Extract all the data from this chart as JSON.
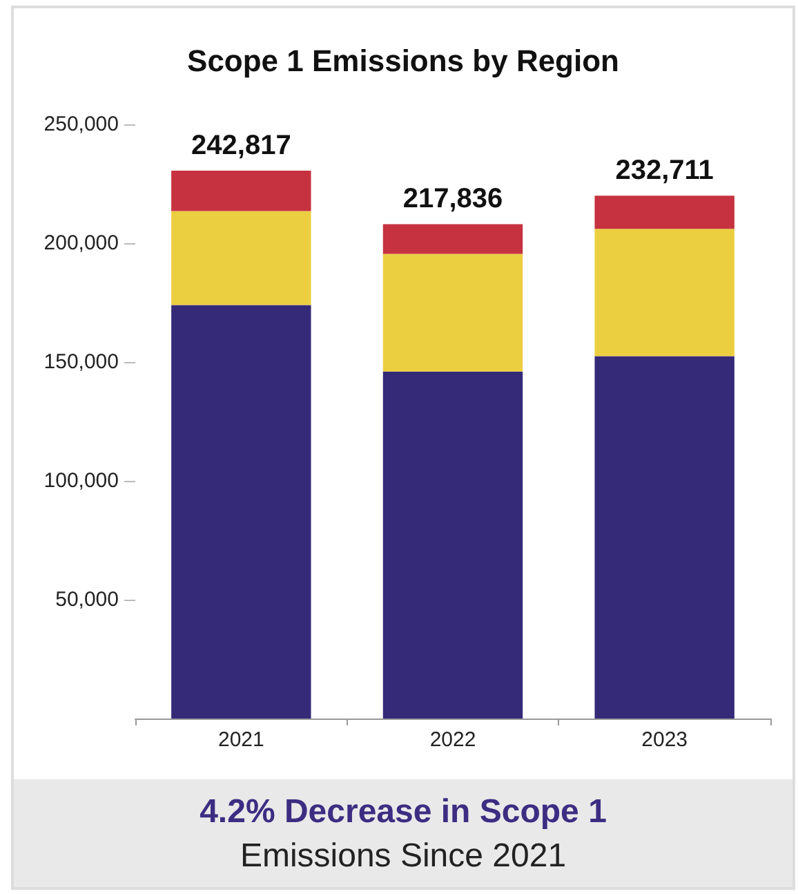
{
  "chart_data": {
    "type": "bar",
    "title": "Scope 1 Emissions by Region",
    "categories": [
      "2021",
      "2022",
      "2023"
    ],
    "stacked": true,
    "series": [
      {
        "color": "#352a78",
        "values": [
          174000,
          146000,
          152500
        ]
      },
      {
        "color": "#ecce41",
        "values": [
          39500,
          49500,
          53500
        ]
      },
      {
        "color": "#c6323f",
        "values": [
          17000,
          12500,
          14000
        ]
      }
    ],
    "ylim": [
      0,
      250000
    ],
    "yticks": [
      {
        "value": 50000,
        "label": "50,000"
      },
      {
        "value": 100000,
        "label": "100,000"
      },
      {
        "value": 150000,
        "label": "150,000"
      },
      {
        "value": 200000,
        "label": "200,000"
      },
      {
        "value": 250000,
        "label": "250,000"
      }
    ],
    "grid": false,
    "annotations": [
      {
        "text": "242,817",
        "x": "2021",
        "y": 230500
      },
      {
        "text": "217,836",
        "x": "2022",
        "y": 208000
      },
      {
        "text": "232,711",
        "x": "2023",
        "y": 220000
      },
      "4.2% Decrease in Scope 1",
      "Emissions Since 2021"
    ]
  }
}
